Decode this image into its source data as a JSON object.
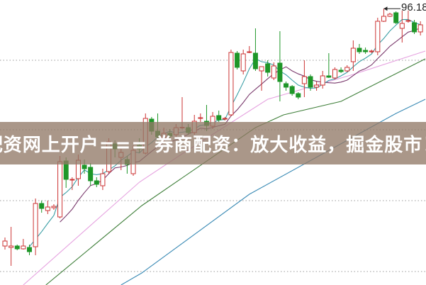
{
  "banner": {
    "text": "配资网上开户=== 券商配资：放大收益，掘金股市！"
  },
  "chart_data": {
    "type": "candlestick",
    "high_marker": {
      "label": "96.18",
      "index": 62,
      "value": 96.18
    },
    "colors": {
      "up": "#cc3333",
      "down": "#1e9628",
      "ma5": "#3c9fa6",
      "ma10": "#7b3b6e",
      "pink_line": "#e6a3e0",
      "green_line": "#3f7f3a",
      "blue_line": "#3b8bb5",
      "grid": "#999999"
    },
    "candles": [
      [
        62.7,
        63.4,
        63.9,
        62.2
      ],
      [
        62.5,
        62.7,
        65.4,
        59.9
      ],
      [
        62.7,
        62.3,
        62.9,
        62.1
      ],
      [
        62.3,
        62.7,
        63.7,
        62.2
      ],
      [
        62.5,
        61.9,
        62.9,
        61.4
      ],
      [
        62.6,
        68.7,
        69.4,
        61.4
      ],
      [
        68.7,
        68.0,
        69.1,
        67.4
      ],
      [
        67.7,
        68.2,
        69.1,
        67.2
      ],
      [
        68.1,
        68.3,
        68.6,
        67.8
      ],
      [
        66.8,
        74.6,
        75.4,
        66.6
      ],
      [
        74.7,
        72.1,
        75.2,
        70.9
      ],
      [
        72.0,
        72.1,
        72.4,
        70.6
      ],
      [
        72.2,
        74.8,
        75.6,
        71.2
      ],
      [
        74.1,
        73.6,
        74.9,
        72.9
      ],
      [
        73.8,
        71.9,
        74.4,
        71.2
      ],
      [
        71.9,
        71.4,
        72.4,
        71.0
      ],
      [
        71.2,
        72.9,
        73.6,
        70.6
      ],
      [
        73.2,
        77.4,
        77.9,
        72.9
      ],
      [
        77.1,
        76.4,
        77.6,
        75.2
      ],
      [
        75.2,
        75.9,
        76.4,
        73.4
      ],
      [
        74.9,
        74.2,
        75.4,
        72.9
      ],
      [
        72.9,
        76.2,
        76.9,
        72.6
      ],
      [
        76.9,
        76.4,
        77.9,
        75.9
      ],
      [
        75.8,
        80.7,
        81.4,
        75.6
      ],
      [
        80.6,
        78.9,
        80.9,
        78.4
      ],
      [
        78.9,
        78.1,
        81.4,
        77.4
      ],
      [
        77.9,
        78.6,
        79.4,
        77.4
      ],
      [
        78.6,
        78.2,
        79.2,
        77.6
      ],
      [
        78.4,
        79.4,
        79.9,
        77.9
      ],
      [
        79.4,
        79.45,
        83.7,
        79.2
      ],
      [
        79.4,
        78.7,
        79.9,
        78.4
      ],
      [
        78.7,
        80.3,
        81.2,
        78.4
      ],
      [
        80.7,
        80.8,
        81.4,
        80.2
      ],
      [
        80.3,
        79.7,
        82.6,
        78.9
      ],
      [
        79.6,
        81.0,
        81.6,
        79.2
      ],
      [
        81.1,
        80.5,
        81.8,
        80.2
      ],
      [
        80.6,
        80.7,
        80.9,
        80.4
      ],
      [
        81.2,
        90.0,
        90.4,
        81.0
      ],
      [
        89.9,
        87.9,
        90.2,
        87.6
      ],
      [
        87.4,
        89.8,
        90.4,
        86.9
      ],
      [
        90.0,
        90.1,
        90.9,
        89.9
      ],
      [
        89.9,
        87.7,
        93.4,
        87.4
      ],
      [
        87.4,
        88.0,
        88.0,
        84.6
      ],
      [
        88.4,
        87.2,
        88.9,
        86.6
      ],
      [
        86.4,
        88.1,
        88.6,
        86.1
      ],
      [
        88.5,
        85.9,
        93.0,
        83.1
      ],
      [
        85.6,
        85.1,
        85.9,
        84.6
      ],
      [
        85.2,
        84.2,
        85.4,
        83.9
      ],
      [
        84.2,
        83.7,
        84.4,
        83.4
      ],
      [
        85.6,
        86.6,
        88.9,
        83.7
      ],
      [
        86.6,
        85.1,
        86.9,
        84.6
      ],
      [
        85.1,
        85.4,
        85.9,
        84.6
      ],
      [
        85.4,
        86.7,
        87.4,
        84.9
      ],
      [
        86.7,
        86.5,
        89.9,
        86.4
      ],
      [
        86.4,
        87.6,
        87.9,
        86.2
      ],
      [
        87.5,
        87.3,
        87.9,
        87.1
      ],
      [
        87.4,
        87.9,
        88.2,
        87.2
      ],
      [
        88.7,
        90.6,
        91.7,
        87.4
      ],
      [
        90.6,
        90.1,
        91.2,
        89.8
      ],
      [
        90.3,
        90.1,
        90.7,
        89.8
      ],
      [
        90.1,
        90.2,
        90.4,
        89.9
      ],
      [
        90.1,
        94.4,
        94.9,
        89.6
      ],
      [
        94.4,
        95.1,
        96.18,
        94.3
      ],
      [
        95.1,
        95.4,
        95.6,
        95.0
      ],
      [
        95.6,
        94.2,
        95.8,
        94.0
      ],
      [
        93.4,
        94.1,
        95.9,
        91.4
      ],
      [
        94.4,
        94.5,
        95.9,
        94.2
      ],
      [
        94.2,
        92.9,
        94.6,
        92.6
      ],
      [
        92.9,
        93.9,
        94.4,
        92.4
      ]
    ],
    "moving_averages": [
      "ma5",
      "ma10"
    ],
    "long_lines": {
      "pink_line": [
        [
          3,
          57.2
        ],
        [
          22,
          71.7
        ],
        [
          29,
          75.7
        ],
        [
          43,
          83.4
        ],
        [
          57,
          86.9
        ],
        [
          68.8,
          90.2
        ]
      ],
      "green_line": [
        [
          6.7,
          57.2
        ],
        [
          22.4,
          68.4
        ],
        [
          41,
          79.4
        ],
        [
          45.6,
          81.2
        ],
        [
          55,
          83.1
        ],
        [
          68.8,
          89.1
        ]
      ],
      "blue_line": [
        [
          19,
          57.2
        ],
        [
          22.4,
          58.9
        ],
        [
          40,
          70
        ],
        [
          64,
          81.4
        ],
        [
          68.8,
          83.4
        ]
      ]
    }
  }
}
